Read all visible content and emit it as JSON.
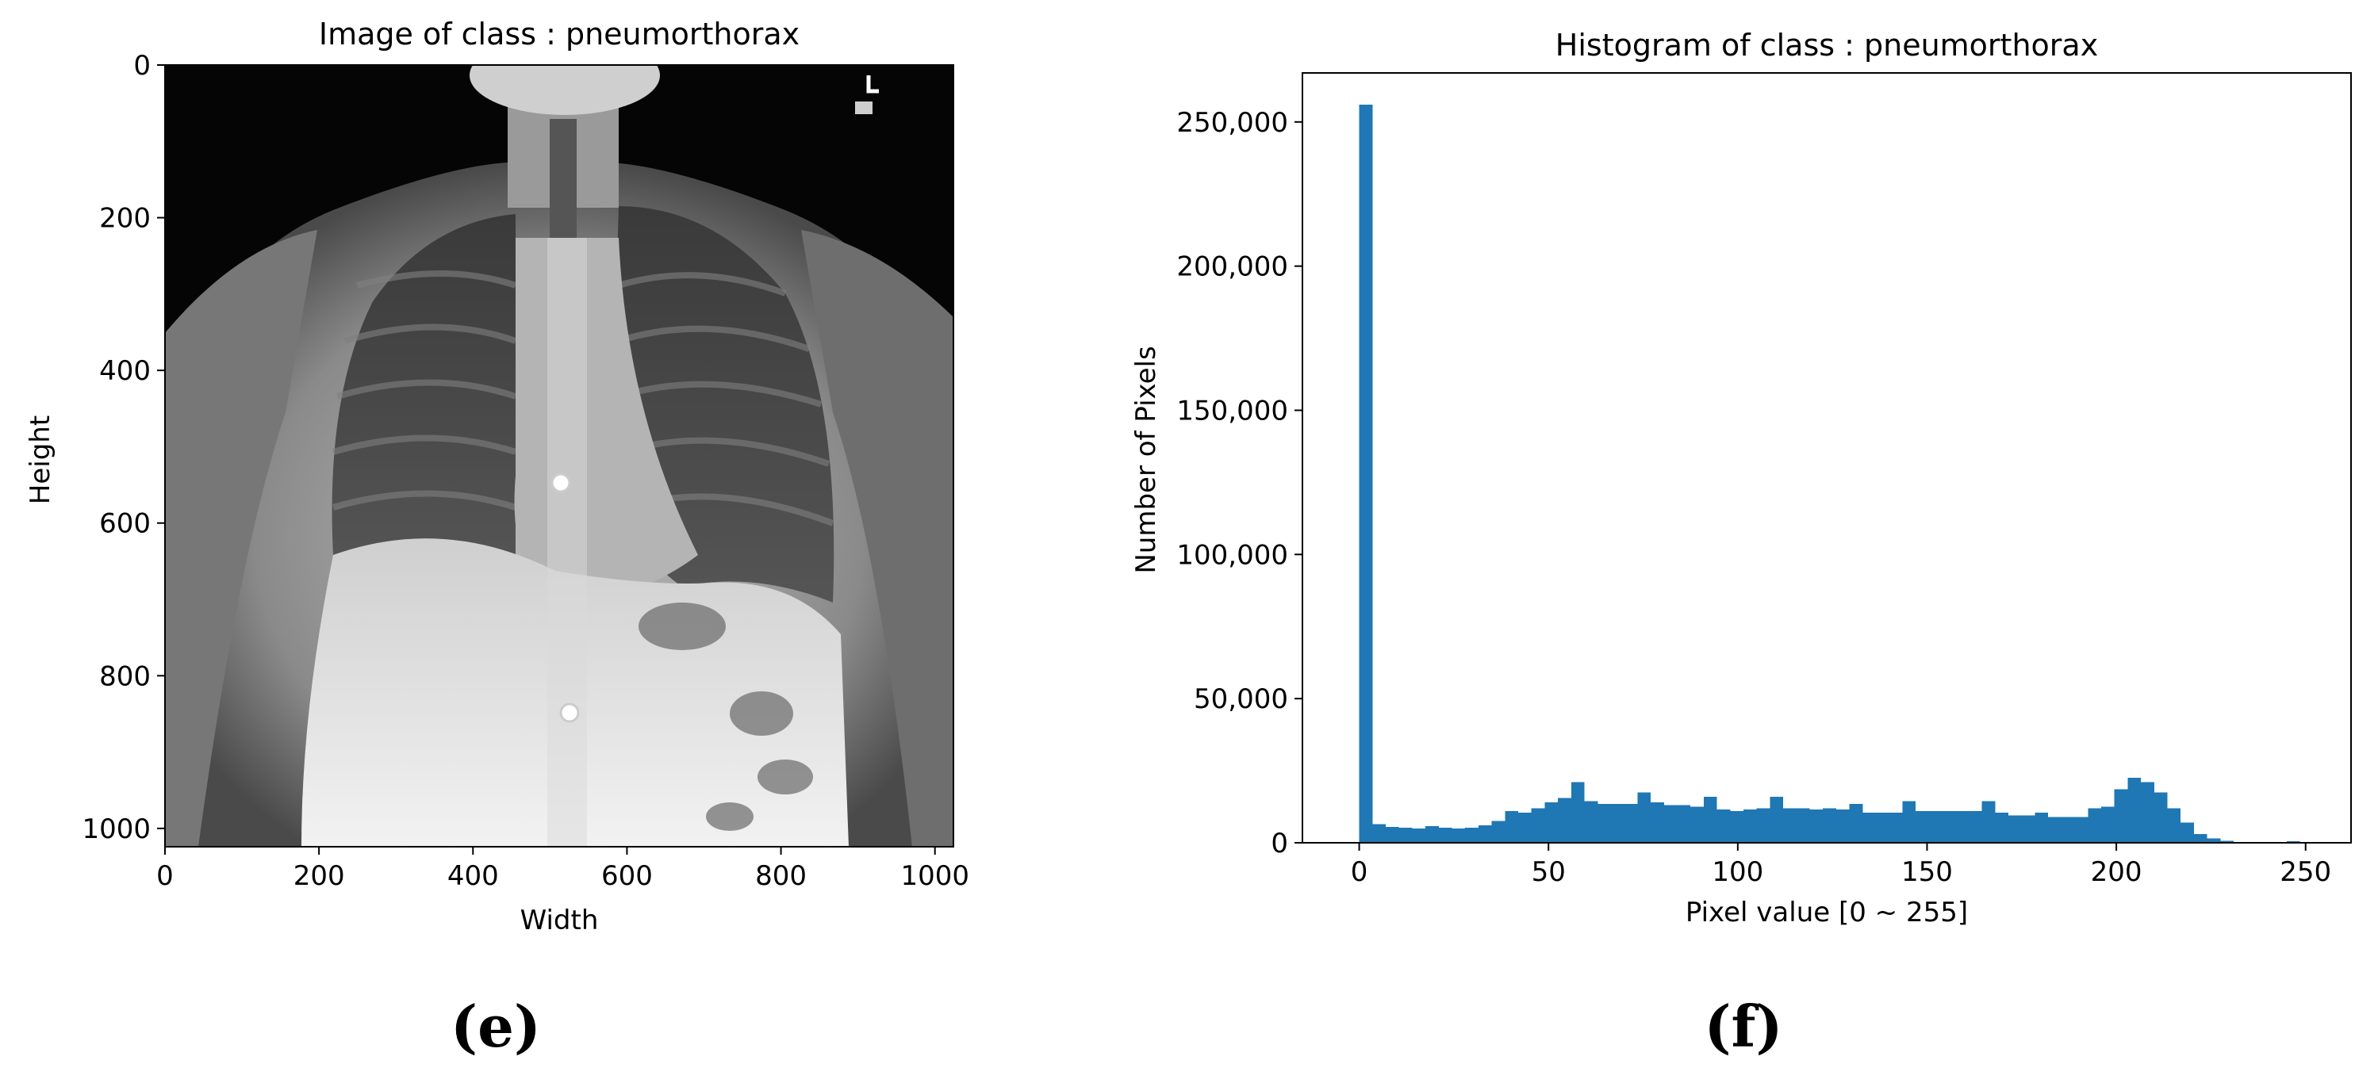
{
  "panel_e": {
    "title": "Image of class : pneumorthorax",
    "xlabel": "Width",
    "ylabel": "Height",
    "x_ticks": [
      "0",
      "200",
      "400",
      "600",
      "800",
      "1000"
    ],
    "y_ticks": [
      "0",
      "200",
      "400",
      "600",
      "800",
      "1000"
    ],
    "label": "(e)"
  },
  "chart_data": {
    "type": "bar",
    "title": "Histogram of class : pneumorthorax",
    "xlabel": "Pixel value [0 ~ 255]",
    "ylabel": "Number of Pixels",
    "xlim": [
      -15,
      262
    ],
    "ylim": [
      0,
      267000
    ],
    "x_ticks": [
      "0",
      "50",
      "100",
      "150",
      "200",
      "250"
    ],
    "y_ticks": [
      "0",
      "50,000",
      "100,000",
      "150,000",
      "200,000",
      "250,000"
    ],
    "bin_width": 3.5,
    "bar_color": "#1f77b4",
    "bin_starts": [
      0,
      3.5,
      7,
      10.5,
      14,
      17.5,
      21,
      24.5,
      28,
      31.5,
      35,
      38.5,
      42,
      45.5,
      49,
      52.5,
      56,
      59.5,
      63,
      66.5,
      70,
      73.5,
      77,
      80.5,
      84,
      87.5,
      91,
      94.5,
      98,
      101.5,
      105,
      108.5,
      112,
      115.5,
      119,
      122.5,
      126,
      129.5,
      133,
      136.5,
      140,
      143.5,
      147,
      150.5,
      154,
      157.5,
      161,
      164.5,
      168,
      171.5,
      175,
      178.5,
      182,
      185.5,
      189,
      192.5,
      196,
      199.5,
      203,
      206.5,
      210,
      213.5,
      217,
      220.5,
      224,
      227.5,
      231,
      234.5,
      238,
      241.5,
      245,
      248.5,
      252
    ],
    "values": [
      256000,
      6500,
      5500,
      5200,
      5000,
      5800,
      5200,
      5000,
      5200,
      6000,
      7500,
      11000,
      10500,
      12000,
      14000,
      15500,
      21000,
      14500,
      13500,
      13500,
      13500,
      17500,
      14000,
      13000,
      13000,
      12500,
      16000,
      11500,
      11000,
      11500,
      12000,
      16000,
      12000,
      12000,
      11500,
      12000,
      11500,
      13500,
      10500,
      10500,
      10500,
      14500,
      11000,
      11000,
      11000,
      11000,
      11000,
      14500,
      10500,
      9500,
      9500,
      10500,
      9000,
      9000,
      9000,
      12000,
      12500,
      18500,
      22500,
      21000,
      17500,
      12000,
      7000,
      3000,
      1500,
      700,
      300,
      100,
      50,
      0,
      500,
      200,
      50
    ]
  }
}
